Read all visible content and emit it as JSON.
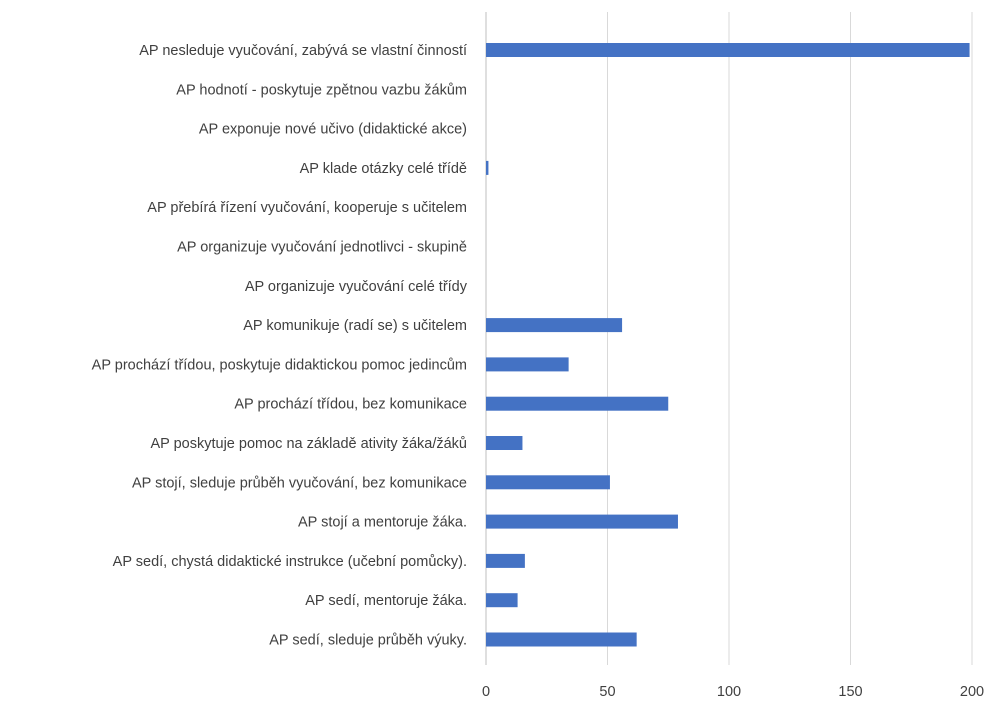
{
  "chart_data": {
    "type": "bar",
    "orientation": "horizontal",
    "categories": [
      "AP nesleduje vyučování, zabývá se vlastní činností",
      "AP hodnotí - poskytuje zpětnou vazbu žákům",
      "AP exponuje nové učivo (didaktické akce)",
      "AP klade otázky celé třídě",
      "AP přebírá řízení vyučování, kooperuje s učitelem",
      "AP organizuje vyučování jednotlivci - skupině",
      "AP organizuje vyučování celé třídy",
      "AP komunikuje (radí se) s učitelem",
      "AP prochází třídou, poskytuje didaktickou pomoc jedincům",
      "AP prochází třídou, bez komunikace",
      "AP poskytuje pomoc na základě ativity žáka/žáků",
      "AP stojí, sleduje průběh vyučování, bez komunikace",
      "AP stojí a mentoruje žáka.",
      "AP sedí, chystá didaktické instrukce (učební pomůcky).",
      "AP sedí, mentoruje žáka.",
      "AP sedí, sleduje průběh výuky."
    ],
    "values": [
      199,
      0,
      0,
      1,
      0,
      0,
      0,
      56,
      34,
      75,
      15,
      51,
      79,
      16,
      13,
      62
    ],
    "xlim": [
      0,
      200
    ],
    "xticks": [
      "0",
      "50",
      "100",
      "150",
      "200"
    ],
    "tick_values": [
      0,
      50,
      100,
      150,
      200
    ],
    "grid": "vertical",
    "legend": "none",
    "bar_color": "#4472c4",
    "title": "",
    "xlabel": "",
    "ylabel": ""
  }
}
